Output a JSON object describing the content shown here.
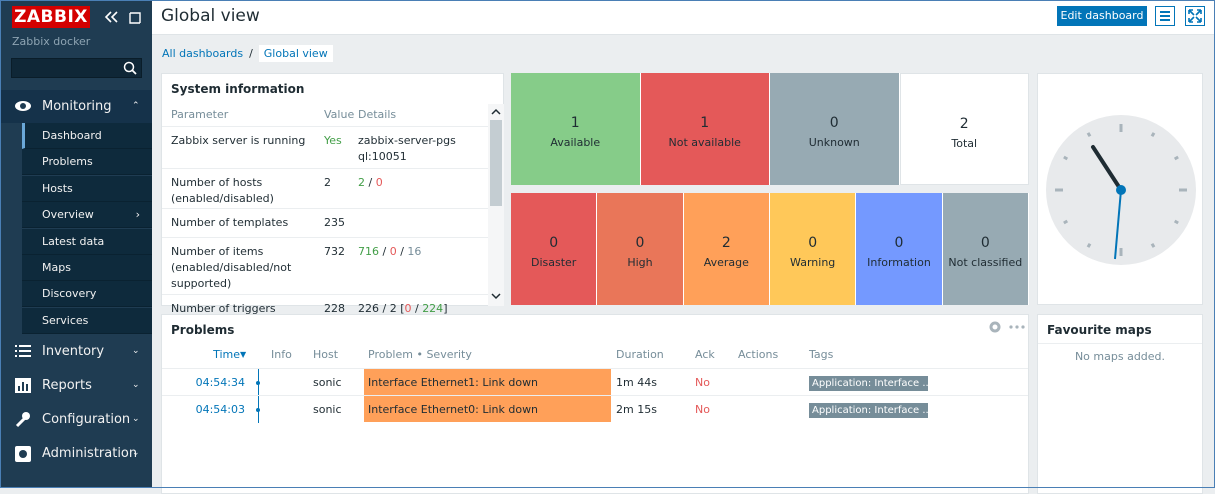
{
  "sidebar": {
    "logo": "ZABBIX",
    "server_name": "Zabbix docker",
    "menu": [
      {
        "label": "Monitoring",
        "items": [
          "Dashboard",
          "Problems",
          "Hosts",
          "Overview",
          "Latest data",
          "Maps",
          "Discovery",
          "Services"
        ]
      },
      {
        "label": "Inventory"
      },
      {
        "label": "Reports"
      },
      {
        "label": "Configuration"
      },
      {
        "label": "Administration"
      }
    ]
  },
  "header": {
    "title": "Global view",
    "edit_button": "Edit dashboard"
  },
  "breadcrumbs": [
    "All dashboards",
    "Global view"
  ],
  "system_information": {
    "title": "System information",
    "columns": [
      "Parameter",
      "Value",
      "Details"
    ],
    "rows": [
      {
        "parameter": "Zabbix server is running",
        "value": "Yes",
        "value_color": "green",
        "details": [
          {
            "text": "zabbix-server-pgsql:10051"
          }
        ]
      },
      {
        "parameter": "Number of hosts (enabled/disabled)",
        "value": "2",
        "details": [
          {
            "text": "2",
            "color": "green"
          },
          {
            "text": " / "
          },
          {
            "text": "0",
            "color": "red"
          }
        ]
      },
      {
        "parameter": "Number of templates",
        "value": "235",
        "details": []
      },
      {
        "parameter": "Number of items (enabled/disabled/not supported)",
        "value": "732",
        "details": [
          {
            "text": "716",
            "color": "green"
          },
          {
            "text": " / "
          },
          {
            "text": "0",
            "color": "red"
          },
          {
            "text": " / "
          },
          {
            "text": "16",
            "color": "grey"
          }
        ]
      },
      {
        "parameter": "Number of triggers",
        "value": "228",
        "details": [
          {
            "text": "226 / 2 ["
          },
          {
            "text": "0",
            "color": "red"
          },
          {
            "text": " / "
          },
          {
            "text": "224",
            "color": "green"
          },
          {
            "text": "]"
          }
        ]
      }
    ]
  },
  "host_availability": [
    {
      "count": "1",
      "label": "Available",
      "color": "#86cc89"
    },
    {
      "count": "1",
      "label": "Not available",
      "color": "#e45959"
    },
    {
      "count": "0",
      "label": "Unknown",
      "color": "#97aab3"
    },
    {
      "count": "2",
      "label": "Total",
      "color": "#ffffff"
    }
  ],
  "problems_by_severity": [
    {
      "count": "0",
      "label": "Disaster",
      "color": "#e45959"
    },
    {
      "count": "0",
      "label": "High",
      "color": "#e97659"
    },
    {
      "count": "2",
      "label": "Average",
      "color": "#ffa059"
    },
    {
      "count": "0",
      "label": "Warning",
      "color": "#ffc859"
    },
    {
      "count": "0",
      "label": "Information",
      "color": "#7499ff"
    },
    {
      "count": "0",
      "label": "Not classified",
      "color": "#97aab3"
    }
  ],
  "problems": {
    "title": "Problems",
    "columns": [
      "Time",
      "Info",
      "Host",
      "Problem • Severity",
      "Duration",
      "Ack",
      "Actions",
      "Tags"
    ],
    "rows": [
      {
        "time": "04:54:34",
        "host": "sonic",
        "problem": "Interface Ethernet1: Link down",
        "duration": "1m 44s",
        "ack": "No",
        "tags": "Application: Interface ..."
      },
      {
        "time": "04:54:03",
        "host": "sonic",
        "problem": "Interface Ethernet0: Link down",
        "duration": "2m 15s",
        "ack": "No",
        "tags": "Application: Interface ..."
      }
    ]
  },
  "favourite_maps": {
    "title": "Favourite maps",
    "empty": "No maps added."
  }
}
